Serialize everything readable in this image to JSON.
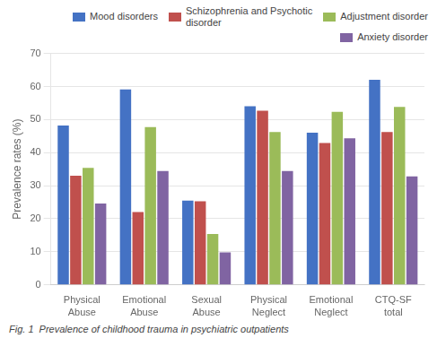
{
  "chart_data": {
    "type": "bar",
    "categories": [
      "Physical\nAbuse",
      "Emotional\nAbuse",
      "Sexual\nAbuse",
      "Physical\nNeglect",
      "Emotional\nNeglect",
      "CTQ-SF\ntotal"
    ],
    "series": [
      {
        "name": "Mood disorders",
        "color": "#4472C4",
        "values": [
          48.2,
          59.1,
          25.5,
          54.0,
          46.0,
          62.0
        ]
      },
      {
        "name": "Schizophrenia and Psychotic\ndisorder",
        "color": "#C0504D",
        "values": [
          33.0,
          22.0,
          25.3,
          52.7,
          42.9,
          46.2
        ]
      },
      {
        "name": "Adjustment disorder",
        "color": "#9BBB59",
        "values": [
          35.4,
          47.7,
          15.4,
          46.2,
          52.3,
          53.8
        ]
      },
      {
        "name": "Anxiety disorder",
        "color": "#8064A2",
        "values": [
          24.6,
          34.4,
          9.8,
          34.4,
          44.3,
          32.8
        ]
      }
    ],
    "ylabel": "Prevalence rates (%)",
    "ylim": [
      0,
      70
    ],
    "yticks": [
      0,
      10,
      20,
      30,
      40,
      50,
      60,
      70
    ],
    "grid": true,
    "legend": "upper right",
    "annotations": [
      "Fig. 1  Prevalence of childhood trauma in psychiatric outpatients"
    ]
  }
}
